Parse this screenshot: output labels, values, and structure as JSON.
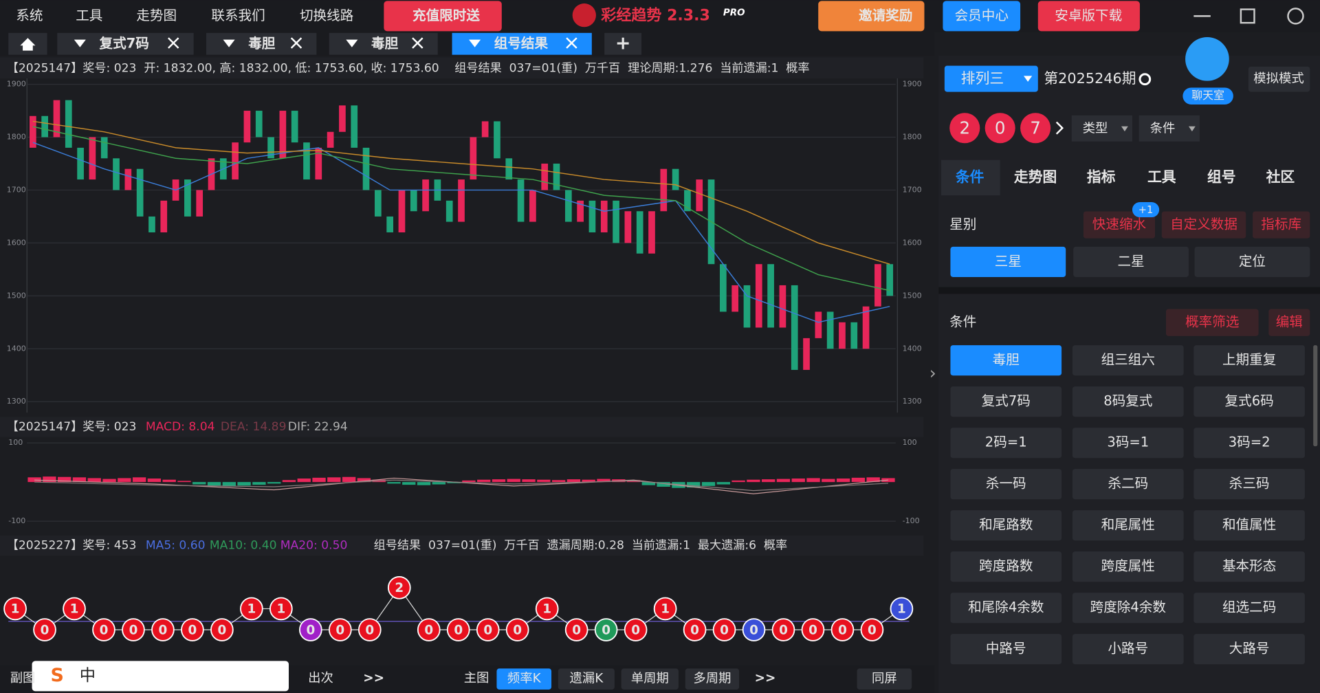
{
  "menu": [
    "系统",
    "工具",
    "走势图",
    "联系我们",
    "切换线路"
  ],
  "promo": "充值限时送",
  "app_name": "彩经趋势 2.3.3",
  "badge": "PRO",
  "invite": "邀请奖励",
  "member": "会员中心",
  "android": "安卓版下载",
  "tabs": [
    "复式7码",
    "毒胆",
    "毒胆",
    "组号结果"
  ],
  "add_tab": "+",
  "chart_data": [
    {
      "type": "candlestick",
      "header": [
        "【2025147】奖号: 023  开: 1832.00, 高: 1832.00, 低: 1753.60, 收: 1753.60",
        "组号结果  037=01(重)  万千百  理论周期:1.276  当前遗漏:1  概率"
      ],
      "open": [
        1780,
        1840,
        1800,
        1870,
        1780,
        1720,
        1800,
        1760,
        1700,
        1740,
        1650,
        1620,
        1680,
        1720,
        1650,
        1700,
        1760,
        1720,
        1790,
        1850,
        1800,
        1760,
        1850,
        1790,
        1720,
        1780,
        1810,
        1860,
        1780,
        1700,
        1650,
        1620,
        1700,
        1660,
        1720,
        1680,
        1640,
        1720,
        1800,
        1830,
        1760,
        1720,
        1640,
        1700,
        1750,
        1700,
        1640,
        1680,
        1620,
        1680,
        1600,
        1660,
        1580,
        1660,
        1740,
        1700,
        1660,
        1720,
        1560,
        1470,
        1520,
        1440,
        1560,
        1440,
        1520,
        1360,
        1420,
        1470,
        1400,
        1450,
        1400,
        1480,
        1560
      ],
      "close": [
        1840,
        1800,
        1870,
        1780,
        1720,
        1800,
        1760,
        1700,
        1740,
        1650,
        1620,
        1680,
        1720,
        1650,
        1700,
        1760,
        1720,
        1790,
        1850,
        1800,
        1760,
        1850,
        1790,
        1720,
        1780,
        1810,
        1860,
        1780,
        1700,
        1650,
        1620,
        1700,
        1660,
        1720,
        1680,
        1640,
        1720,
        1800,
        1830,
        1760,
        1720,
        1640,
        1700,
        1750,
        1700,
        1640,
        1680,
        1620,
        1680,
        1600,
        1660,
        1580,
        1660,
        1740,
        1700,
        1660,
        1720,
        1560,
        1470,
        1520,
        1440,
        1560,
        1440,
        1520,
        1360,
        1420,
        1470,
        1400,
        1450,
        1400,
        1480,
        1560,
        1500
      ],
      "up_color": "#e8265a",
      "down_color": "#1fa37a",
      "series": [
        {
          "color": "#3b7dd8",
          "x": [
            0,
            6,
            12,
            18,
            24,
            30,
            36,
            42,
            48,
            54,
            60,
            66,
            72
          ],
          "values": [
            1790,
            1740,
            1700,
            1760,
            1780,
            1700,
            1700,
            1700,
            1660,
            1680,
            1500,
            1450,
            1480
          ]
        },
        {
          "color": "#3fa34d",
          "x": [
            0,
            6,
            12,
            18,
            24,
            30,
            36,
            42,
            48,
            54,
            60,
            66,
            72
          ],
          "values": [
            1820,
            1790,
            1760,
            1750,
            1770,
            1740,
            1730,
            1720,
            1690,
            1680,
            1600,
            1540,
            1510
          ]
        },
        {
          "color": "#c98b2a",
          "x": [
            0,
            6,
            12,
            18,
            24,
            30,
            36,
            42,
            48,
            54,
            60,
            66,
            72
          ],
          "values": [
            1830,
            1810,
            1780,
            1770,
            1775,
            1760,
            1750,
            1740,
            1720,
            1710,
            1660,
            1600,
            1560
          ]
        }
      ],
      "ylim": [
        1300,
        1900
      ],
      "yticks": [
        1300,
        1400,
        1500,
        1600,
        1700,
        1800,
        1900
      ],
      "grid": true
    },
    {
      "type": "bar",
      "header": [
        "【2025147】奖号: 023",
        "MACD: 8.04",
        "DEA: 14.89",
        "DIF: 22.94"
      ],
      "values": [
        12,
        14,
        13,
        12,
        10,
        8,
        10,
        12,
        9,
        6,
        3,
        -6,
        -9,
        -10,
        -9,
        -7,
        -4,
        5,
        9,
        11,
        12,
        13,
        10,
        6,
        -4,
        -7,
        -8,
        -6,
        -3,
        4,
        6,
        7,
        8,
        7,
        6,
        5,
        7,
        6,
        8,
        7,
        5,
        -8,
        -12,
        -15,
        -14,
        -10,
        -6,
        4,
        6,
        7,
        8,
        9,
        10,
        8,
        9,
        11,
        12,
        10
      ],
      "up_color": "#e8265a",
      "down_color": "#1fa37a",
      "series": [
        {
          "color": "#c89a9a",
          "x": [
            0,
            8,
            16,
            24,
            32,
            40,
            48,
            57
          ],
          "values": [
            5,
            -5,
            -20,
            10,
            -10,
            5,
            -30,
            5
          ]
        },
        {
          "color": "#8a7d7d",
          "x": [
            0,
            8,
            16,
            24,
            32,
            40,
            48,
            57
          ],
          "values": [
            0,
            -8,
            -12,
            5,
            -5,
            3,
            -22,
            -3
          ]
        }
      ],
      "ylim": [
        -100,
        100
      ],
      "yticks": [
        -100,
        100
      ]
    },
    {
      "type": "dots",
      "header": [
        "【2025227】奖号: 453",
        "MA5: 0.60",
        "MA10: 0.40",
        "MA20: 0.50",
        "组号结果  037=01(重)  万千百  遗漏周期:0.28  当前遗漏:1  最大遗漏:6  概率"
      ],
      "values": [
        1,
        0,
        1,
        0,
        0,
        0,
        0,
        0,
        1,
        1,
        0,
        0,
        0,
        2,
        0,
        0,
        0,
        0,
        1,
        0,
        0,
        0,
        1,
        0,
        0,
        0,
        0,
        0,
        0,
        0,
        1
      ],
      "colors": [
        "#e8101e",
        "#e8101e",
        "#e8101e",
        "#e8101e",
        "#e8101e",
        "#e8101e",
        "#e8101e",
        "#e8101e",
        "#e8101e",
        "#e8101e",
        "#a020c8",
        "#e8101e",
        "#e8101e",
        "#e8101e",
        "#e8101e",
        "#e8101e",
        "#e8101e",
        "#e8101e",
        "#e8101e",
        "#e8101e",
        "#1f9a5a",
        "#e8101e",
        "#e8101e",
        "#e8101e",
        "#e8101e",
        "#3a4fd8",
        "#e8101e",
        "#e8101e",
        "#e8101e",
        "#e8101e",
        "#3a4fd8"
      ]
    }
  ],
  "lottery": "排列三",
  "period": "第2025246期",
  "chat": "聊天室",
  "sim": "模拟模式",
  "balls": [
    2,
    0,
    7
  ],
  "filters": [
    "类型",
    "条件"
  ],
  "panel_tabs": [
    "条件",
    "走势图",
    "指标",
    "工具",
    "组号",
    "社区"
  ],
  "star_label": "星别",
  "quick": "快速缩水",
  "quick_badge": "+1",
  "custom": "自定义数据",
  "indicator_lib": "指标库",
  "stars": [
    "三星",
    "二星",
    "定位"
  ],
  "cond_label": "条件",
  "prob": "概率筛选",
  "edit": "编辑",
  "conditions": [
    "毒胆",
    "组三组六",
    "上期重复",
    "复式7码",
    "8码复式",
    "复式6码",
    "2码=1",
    "3码=1",
    "3码=2",
    "杀一码",
    "杀二码",
    "杀三码",
    "和尾路数",
    "和尾属性",
    "和值属性",
    "跨度路数",
    "跨度属性",
    "基本形态",
    "和尾除4余数",
    "跨度除4余数",
    "组选二码",
    "中路号",
    "小路号",
    "大路号"
  ],
  "bottom": {
    "sub": "副图",
    "ime": "中",
    "count": "出次",
    "more": ">>",
    "main": "主图",
    "modes": [
      "频率K",
      "遗漏K",
      "单周期",
      "多周期"
    ],
    "more2": ">>",
    "same": "同屏"
  }
}
